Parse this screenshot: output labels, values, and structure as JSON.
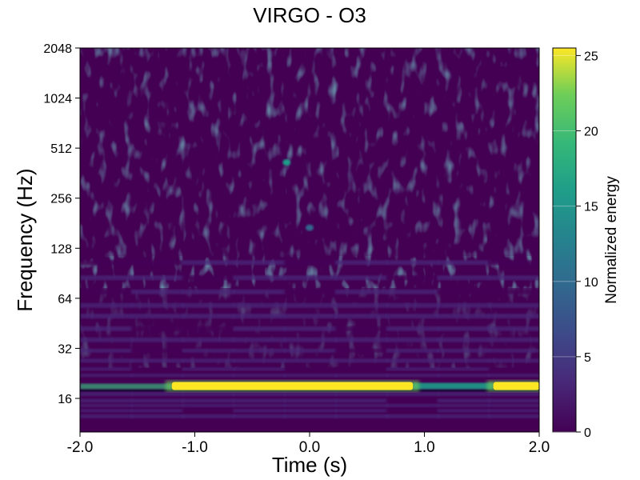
{
  "chart_data": {
    "type": "heatmap",
    "title": "VIRGO - O3",
    "xlabel": "Time (s)",
    "ylabel": "Frequency (Hz)",
    "xlim": [
      -2.0,
      2.0
    ],
    "ylim": [
      10,
      2048
    ],
    "yscale": "log2",
    "x_ticks": [
      "-2.0",
      "-1.0",
      "0.0",
      "1.0",
      "2.0"
    ],
    "x_tick_values": [
      -2.0,
      -1.0,
      0.0,
      1.0,
      2.0
    ],
    "y_ticks": [
      "16",
      "32",
      "64",
      "128",
      "256",
      "512",
      "1024",
      "2048"
    ],
    "y_tick_values": [
      16,
      32,
      64,
      128,
      256,
      512,
      1024,
      2048
    ],
    "colorbar": {
      "label": "Normalized energy",
      "range": [
        0,
        25.5
      ],
      "ticks": [
        "0",
        "5",
        "10",
        "15",
        "20",
        "25"
      ],
      "tick_values": [
        0,
        5,
        10,
        15,
        20,
        25
      ],
      "colormap": "viridis"
    },
    "features": {
      "strong_band": {
        "frequency_hz": 19,
        "segments": [
          {
            "t_start": -1.2,
            "t_end": 0.9,
            "energy": 25.5
          },
          {
            "t_start": 1.6,
            "t_end": 2.0,
            "energy": 25.5
          }
        ]
      },
      "hotspots": [
        {
          "t": -0.2,
          "f_hz": 420,
          "energy": 16
        },
        {
          "t": 0.0,
          "f_hz": 170,
          "energy": 11
        }
      ]
    },
    "grid": false
  }
}
